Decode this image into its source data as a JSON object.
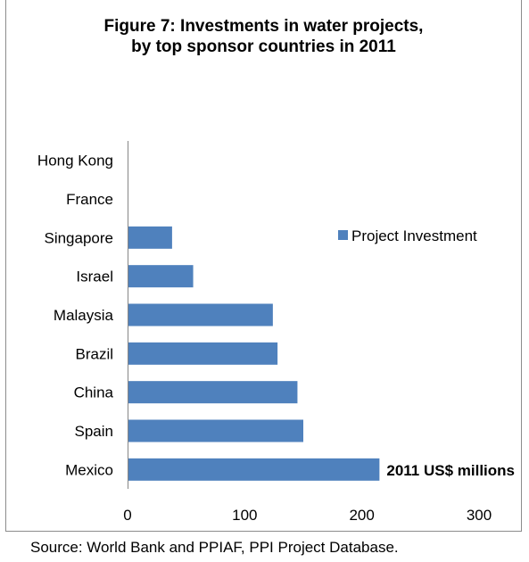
{
  "title_line1": "Figure 7: Investments in water projects,",
  "title_line2": "by top sponsor countries in 2011",
  "source": "Source:  World Bank and PPIAF, PPI Project Database.",
  "bar_color": "#4f81bd",
  "chart_data": {
    "type": "bar",
    "orientation": "horizontal",
    "categories": [
      "Mexico",
      "Spain",
      "China",
      "Brazil",
      "Malaysia",
      "Israel",
      "Singapore",
      "France",
      "Hong Kong"
    ],
    "series": [
      {
        "name": "Project Investment",
        "values": [
          215,
          150,
          145,
          128,
          124,
          56,
          38,
          0,
          0
        ]
      }
    ],
    "xlim": [
      0,
      300
    ],
    "xticks": [
      0,
      100,
      200,
      300
    ],
    "unit_label": "2011 US$ millions",
    "legend": "right",
    "grid": false
  }
}
